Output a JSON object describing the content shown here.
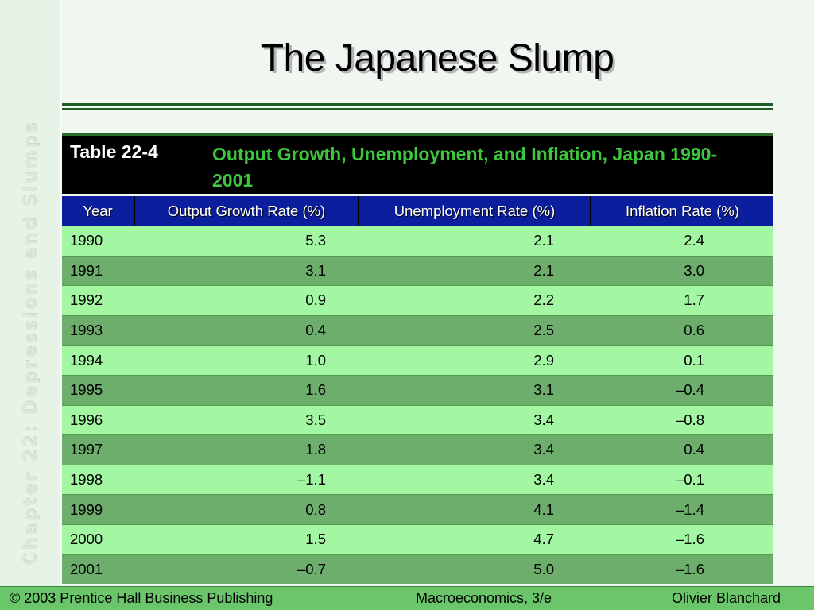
{
  "slide": {
    "title": "The Japanese Slump",
    "side_label": "Chapter 22: Depressions and Slumps"
  },
  "table": {
    "number": "Table 22-4",
    "title": "Output Growth, Unemployment, and Inflation, Japan 1990-2001",
    "columns": [
      "Year",
      "Output Growth Rate (%)",
      "Unemployment Rate (%)",
      "Inflation Rate (%)"
    ],
    "rows": [
      [
        "1990",
        "5.3",
        "2.1",
        "2.4"
      ],
      [
        "1991",
        "3.1",
        "2.1",
        "3.0"
      ],
      [
        "1992",
        "0.9",
        "2.2",
        "1.7"
      ],
      [
        "1993",
        "0.4",
        "2.5",
        "0.6"
      ],
      [
        "1994",
        "1.0",
        "2.9",
        "0.1"
      ],
      [
        "1995",
        "1.6",
        "3.1",
        "–0.4"
      ],
      [
        "1996",
        "3.5",
        "3.4",
        "–0.8"
      ],
      [
        "1997",
        "1.8",
        "3.4",
        "0.4"
      ],
      [
        "1998",
        "–1.1",
        "3.4",
        "–0.1"
      ],
      [
        "1999",
        "0.8",
        "4.1",
        "–1.4"
      ],
      [
        "2000",
        "1.5",
        "4.7",
        "–1.6"
      ],
      [
        "2001",
        "–0.7",
        "5.0",
        "–1.6"
      ]
    ]
  },
  "footer": {
    "left": "© 2003 Prentice Hall Business Publishing",
    "center": "Macroeconomics, 3/e",
    "right": "Olivier Blanchard"
  },
  "colors": {
    "header_blue": "#0b1f9e",
    "row_light": "#a3f7a3",
    "row_dark": "#6dae6d",
    "table_title_green": "#3ec63e",
    "footer_green": "#6bc66b"
  }
}
